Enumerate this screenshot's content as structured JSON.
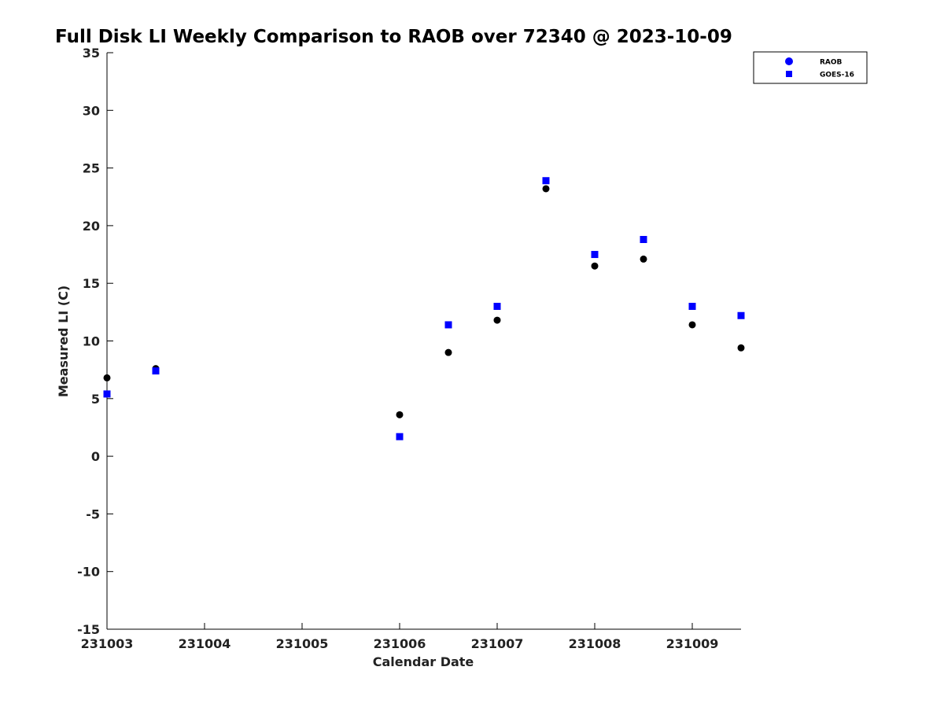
{
  "chart_data": {
    "type": "scatter",
    "title": "Full Disk LI Weekly Comparison to RAOB over 72340 @ 2023-10-09",
    "xlabel": "Calendar Date",
    "ylabel": "Measured LI (C)",
    "xlim": [
      0,
      6.5
    ],
    "ylim": [
      -15,
      35
    ],
    "x_ticks": [
      {
        "value": 0,
        "label": "231003"
      },
      {
        "value": 1,
        "label": "231004"
      },
      {
        "value": 2,
        "label": "231005"
      },
      {
        "value": 3,
        "label": "231006"
      },
      {
        "value": 4,
        "label": "231007"
      },
      {
        "value": 5,
        "label": "231008"
      },
      {
        "value": 6,
        "label": "231009"
      }
    ],
    "y_ticks": [
      {
        "value": 35,
        "label": "35"
      },
      {
        "value": 30,
        "label": "30"
      },
      {
        "value": 25,
        "label": "25"
      },
      {
        "value": 20,
        "label": "20"
      },
      {
        "value": 15,
        "label": "15"
      },
      {
        "value": 10,
        "label": "10"
      },
      {
        "value": 5,
        "label": "5"
      },
      {
        "value": 0,
        "label": "0"
      },
      {
        "value": -5,
        "label": "-5"
      },
      {
        "value": -10,
        "label": "-10"
      },
      {
        "value": -15,
        "label": "-15"
      }
    ],
    "grid": false,
    "legend_position": "top-right",
    "series": [
      {
        "name": "RAOB",
        "marker": "circle",
        "legend_color": "#0000ff",
        "point_color": "#000000",
        "x": [
          0,
          0.5,
          3,
          3.5,
          4,
          4.5,
          5,
          5.5,
          6,
          6.5
        ],
        "y": [
          6.8,
          7.6,
          3.6,
          9.0,
          11.8,
          23.2,
          16.5,
          17.1,
          11.4,
          9.4
        ]
      },
      {
        "name": "GOES-16",
        "marker": "square",
        "legend_color": "#0000ff",
        "point_color": "#0000ff",
        "x": [
          0,
          0.5,
          3,
          3.5,
          4,
          4.5,
          5,
          5.5,
          6,
          6.5
        ],
        "y": [
          5.4,
          7.4,
          1.7,
          11.4,
          13.0,
          23.9,
          17.5,
          18.8,
          13.0,
          12.2
        ]
      }
    ]
  }
}
